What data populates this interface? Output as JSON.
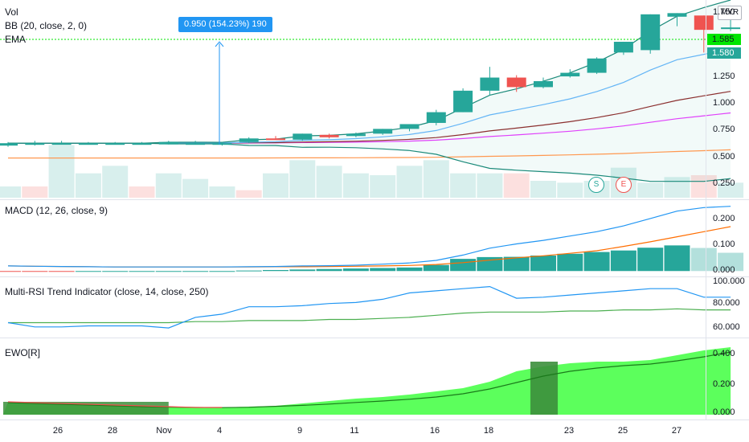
{
  "main": {
    "legend": {
      "vol": "Vol",
      "bb": "BB (20, close, 2, 0)",
      "ema": "EMA"
    },
    "currency": "MYR",
    "price_labels": {
      "last": "1.585",
      "close": "1.580"
    },
    "y_ticks": [
      "1.750",
      "1.250",
      "1.000",
      "0.750",
      "0.500",
      "0.250"
    ],
    "measure_label": "0.950 (154.23%) 190",
    "markers": {
      "split": "S",
      "earnings": "E"
    }
  },
  "macd": {
    "legend": "MACD (12, 26, close, 9)",
    "y_ticks": [
      "0.200",
      "0.100",
      "0.000"
    ]
  },
  "rsi": {
    "legend": "Multi-RSI Trend Indicator (close, 14, close, 250)",
    "y_ticks": [
      "100.000",
      "80.000",
      "60.000"
    ]
  },
  "ewo": {
    "legend": "EWO[R]",
    "y_ticks": [
      "0.400",
      "0.200",
      "0.000"
    ]
  },
  "x_axis": [
    "26",
    "28",
    "Nov",
    "4",
    "9",
    "11",
    "16",
    "18",
    "23",
    "25",
    "27"
  ],
  "colors": {
    "up": "#26a69a",
    "down": "#ef5350",
    "accent": "#2196f3",
    "ewo_fill": "#5cff5c",
    "last_price": "#00e600"
  },
  "chart_data": [
    {
      "type": "candlestick",
      "name": "price",
      "ylim": [
        0.15,
        1.82
      ],
      "candles": [
        {
          "o": 0.6,
          "h": 0.63,
          "l": 0.59,
          "c": 0.62
        },
        {
          "o": 0.62,
          "h": 0.64,
          "l": 0.6,
          "c": 0.62
        },
        {
          "o": 0.62,
          "h": 0.64,
          "l": 0.61,
          "c": 0.62
        },
        {
          "o": 0.62,
          "h": 0.63,
          "l": 0.61,
          "c": 0.62
        },
        {
          "o": 0.62,
          "h": 0.63,
          "l": 0.61,
          "c": 0.62
        },
        {
          "o": 0.62,
          "h": 0.63,
          "l": 0.61,
          "c": 0.62
        },
        {
          "o": 0.61,
          "h": 0.64,
          "l": 0.61,
          "c": 0.63
        },
        {
          "o": 0.62,
          "h": 0.64,
          "l": 0.61,
          "c": 0.62
        },
        {
          "o": 0.61,
          "h": 0.63,
          "l": 0.6,
          "c": 0.62
        },
        {
          "o": 0.63,
          "h": 0.67,
          "l": 0.62,
          "c": 0.66
        },
        {
          "o": 0.66,
          "h": 0.68,
          "l": 0.65,
          "c": 0.65
        },
        {
          "o": 0.65,
          "h": 0.7,
          "l": 0.64,
          "c": 0.7
        },
        {
          "o": 0.69,
          "h": 0.7,
          "l": 0.66,
          "c": 0.67
        },
        {
          "o": 0.68,
          "h": 0.71,
          "l": 0.67,
          "c": 0.7
        },
        {
          "o": 0.7,
          "h": 0.74,
          "l": 0.69,
          "c": 0.74
        },
        {
          "o": 0.74,
          "h": 0.77,
          "l": 0.72,
          "c": 0.78
        },
        {
          "o": 0.79,
          "h": 0.9,
          "l": 0.77,
          "c": 0.88
        },
        {
          "o": 0.88,
          "h": 1.08,
          "l": 0.88,
          "c": 1.06
        },
        {
          "o": 1.06,
          "h": 1.26,
          "l": 1.02,
          "c": 1.17
        },
        {
          "o": 1.17,
          "h": 1.19,
          "l": 1.05,
          "c": 1.09
        },
        {
          "o": 1.09,
          "h": 1.17,
          "l": 1.08,
          "c": 1.14
        },
        {
          "o": 1.18,
          "h": 1.24,
          "l": 1.17,
          "c": 1.21
        },
        {
          "o": 1.21,
          "h": 1.34,
          "l": 1.2,
          "c": 1.33
        },
        {
          "o": 1.38,
          "h": 1.47,
          "l": 1.36,
          "c": 1.47
        },
        {
          "o": 1.4,
          "h": 1.7,
          "l": 1.37,
          "c": 1.7
        },
        {
          "o": 1.68,
          "h": 1.71,
          "l": 1.6,
          "c": 1.71
        },
        {
          "o": 1.69,
          "h": 1.69,
          "l": 1.38,
          "c": 1.57
        },
        {
          "o": 1.58,
          "h": 1.67,
          "l": 1.56,
          "c": 1.59
        }
      ]
    },
    {
      "type": "bar",
      "name": "Vol",
      "values": [
        0.06,
        0.06,
        0.28,
        0.13,
        0.17,
        0.06,
        0.13,
        0.1,
        0.06,
        0.04,
        0.13,
        0.2,
        0.17,
        0.13,
        0.12,
        0.17,
        0.2,
        0.13,
        0.13,
        0.13,
        0.09,
        0.08,
        0.09,
        0.16,
        0.08,
        0.11,
        0.12,
        0.08
      ],
      "up": [
        true,
        false,
        true,
        true,
        true,
        false,
        true,
        true,
        true,
        false,
        true,
        true,
        true,
        true,
        true,
        true,
        true,
        true,
        true,
        false,
        true,
        true,
        true,
        true,
        true,
        true,
        false,
        true
      ]
    },
    {
      "type": "line",
      "name": "MACD",
      "ylim": [
        -0.015,
        0.27
      ],
      "series": [
        {
          "name": "macd",
          "values": [
            0.02,
            0.019,
            0.018,
            0.017,
            0.016,
            0.016,
            0.016,
            0.016,
            0.016,
            0.017,
            0.018,
            0.02,
            0.021,
            0.023,
            0.027,
            0.032,
            0.042,
            0.063,
            0.09,
            0.107,
            0.121,
            0.138,
            0.155,
            0.178,
            0.207,
            0.236,
            0.25,
            0.255
          ]
        },
        {
          "name": "signal",
          "values": [
            0.02,
            0.019,
            0.018,
            0.017,
            0.016,
            0.016,
            0.016,
            0.016,
            0.016,
            0.016,
            0.017,
            0.017,
            0.018,
            0.019,
            0.02,
            0.022,
            0.026,
            0.033,
            0.043,
            0.052,
            0.06,
            0.07,
            0.08,
            0.097,
            0.115,
            0.135,
            0.155,
            0.175
          ]
        },
        {
          "name": "histogram",
          "values": [
            -0.003,
            -0.003,
            -0.003,
            0.0,
            0.0,
            0.0,
            0.0,
            0.0,
            0.0,
            0.002,
            0.004,
            0.006,
            0.008,
            0.01,
            0.012,
            0.014,
            0.024,
            0.048,
            0.055,
            0.056,
            0.061,
            0.068,
            0.075,
            0.081,
            0.092,
            0.101,
            0.091,
            0.072
          ]
        }
      ]
    },
    {
      "type": "line",
      "name": "Multi-RSI Trend Indicator",
      "ylim": [
        48,
        104
      ],
      "series": [
        {
          "name": "rsi_fast",
          "values": [
            62,
            58,
            58,
            59,
            59,
            59,
            57,
            67,
            70,
            77,
            77,
            78,
            80,
            81,
            84,
            90,
            92,
            94,
            96,
            85,
            86,
            88,
            90,
            92,
            94,
            94,
            86,
            86
          ]
        },
        {
          "name": "rsi_slow",
          "values": [
            62,
            62,
            62,
            62,
            62,
            62,
            62,
            63,
            63,
            64,
            64,
            64,
            65,
            65,
            66,
            67,
            69,
            71,
            72,
            72,
            72,
            73,
            73,
            74,
            74,
            75,
            74,
            74
          ]
        }
      ]
    },
    {
      "type": "area",
      "name": "EWO[R]",
      "ylim": [
        -0.02,
        0.47
      ],
      "series": [
        {
          "name": "ewo",
          "values": [
            0.08,
            0.075,
            0.07,
            0.065,
            0.06,
            0.055,
            0.05,
            0.045,
            0.045,
            0.05,
            0.055,
            0.07,
            0.085,
            0.1,
            0.11,
            0.125,
            0.145,
            0.165,
            0.205,
            0.27,
            0.3,
            0.32,
            0.33,
            0.33,
            0.34,
            0.37,
            0.4,
            0.42
          ]
        },
        {
          "name": "ewo_signal",
          "values": [
            0.075,
            0.07,
            0.065,
            0.06,
            0.055,
            0.05,
            0.047,
            0.045,
            0.044,
            0.046,
            0.052,
            0.058,
            0.066,
            0.076,
            0.085,
            0.096,
            0.11,
            0.13,
            0.16,
            0.2,
            0.24,
            0.27,
            0.29,
            0.305,
            0.315,
            0.335,
            0.36,
            0.39
          ]
        }
      ]
    }
  ]
}
